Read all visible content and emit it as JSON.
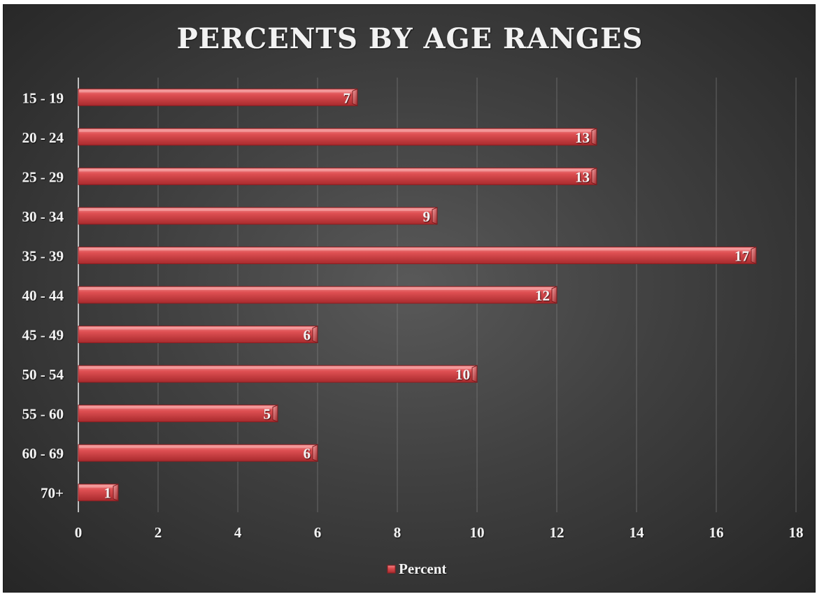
{
  "chart_data": {
    "type": "bar",
    "orientation": "horizontal",
    "title": "PERCENTS BY AGE RANGES",
    "categories": [
      "15 - 19",
      "20 - 24",
      "25 - 29",
      "30 - 34",
      "35 - 39",
      "40 - 44",
      "45 - 49",
      "50 - 54",
      "55 - 60",
      "60 - 69",
      "70+"
    ],
    "series": [
      {
        "name": "Percent",
        "values": [
          7,
          13,
          13,
          9,
          17,
          12,
          6,
          10,
          5,
          6,
          1
        ]
      }
    ],
    "xlim": [
      0,
      18
    ],
    "xticks": [
      "0",
      "2",
      "4",
      "6",
      "8",
      "10",
      "12",
      "14",
      "16",
      "18"
    ],
    "xlabel": "",
    "ylabel": "",
    "grid": true,
    "legend": "bottom",
    "colors": {
      "bar": "#d9494c",
      "bar_light": "#f07a7c",
      "bar_dark": "#a8282b",
      "text": "#f2f2f2",
      "background": "#404040"
    }
  }
}
